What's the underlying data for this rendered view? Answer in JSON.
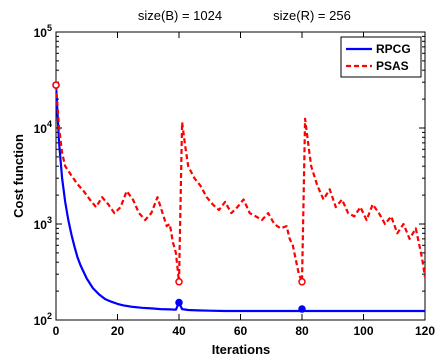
{
  "chart_data": {
    "type": "line",
    "title_parts": [
      "size(B) = 1024",
      "size(R) = 256"
    ],
    "xlabel": "Iterations",
    "ylabel": "Cost function",
    "xlim": [
      0,
      120
    ],
    "ylim": [
      100,
      100000
    ],
    "yscale": "log",
    "grid": false,
    "legend_position": "top-right",
    "xticks": [
      0,
      20,
      40,
      60,
      80,
      100,
      120
    ],
    "yticks": [
      {
        "value": 100,
        "base": "10",
        "exp": "2"
      },
      {
        "value": 1000,
        "base": "10",
        "exp": "3"
      },
      {
        "value": 10000,
        "base": "10",
        "exp": "4"
      },
      {
        "value": 100000,
        "base": "10",
        "exp": "5"
      }
    ],
    "series": [
      {
        "name": "RPCG",
        "color": "#0000ff",
        "style": "solid",
        "x": [
          0,
          1,
          2,
          3,
          4,
          5,
          6,
          7,
          8,
          10,
          12,
          14,
          16,
          18,
          20,
          22,
          25,
          28,
          31,
          34,
          37,
          39,
          40,
          41,
          43,
          46,
          50,
          55,
          60,
          70,
          79,
          80,
          81,
          85,
          90,
          100,
          110,
          120
        ],
        "y": [
          28000,
          7000,
          3000,
          1700,
          1100,
          780,
          580,
          450,
          370,
          270,
          215,
          185,
          165,
          155,
          147,
          142,
          137,
          134,
          132,
          130,
          129,
          128,
          152,
          130,
          127,
          126,
          125,
          124,
          124,
          124,
          124,
          130,
          124,
          124,
          124,
          124,
          124,
          124
        ]
      },
      {
        "name": "PSAS",
        "color": "#ff0000",
        "style": "dashed",
        "x": [
          0,
          1,
          2,
          3,
          5,
          7,
          9,
          11,
          13,
          15,
          17,
          19,
          21,
          23,
          25,
          27,
          29,
          31,
          33,
          35,
          36,
          37,
          38,
          39,
          40,
          41,
          42,
          43,
          45,
          47,
          49,
          51,
          53,
          55,
          57,
          59,
          61,
          63,
          65,
          67,
          69,
          71,
          73,
          75,
          76,
          77,
          78,
          79,
          80,
          81,
          82,
          83,
          85,
          87,
          89,
          91,
          93,
          95,
          97,
          99,
          101,
          103,
          105,
          107,
          109,
          111,
          113,
          115,
          117,
          119,
          120
        ],
        "y": [
          28000,
          10000,
          5500,
          4000,
          3200,
          2600,
          2200,
          1800,
          1500,
          1900,
          1600,
          1300,
          1500,
          2200,
          1800,
          1300,
          1100,
          1300,
          1900,
          1200,
          950,
          1000,
          650,
          500,
          250,
          11500,
          6500,
          4000,
          3000,
          2500,
          1900,
          1600,
          1400,
          1700,
          1300,
          1500,
          1800,
          1300,
          1200,
          1100,
          1300,
          1000,
          900,
          950,
          700,
          600,
          420,
          300,
          250,
          12500,
          7000,
          4000,
          2500,
          1800,
          2300,
          1500,
          1800,
          1300,
          1200,
          1500,
          1100,
          1600,
          1300,
          1000,
          1200,
          800,
          1000,
          700,
          900,
          450,
          280
        ]
      }
    ],
    "markers": [
      {
        "series": "RPCG",
        "x": 0,
        "y": 28000,
        "fill": true
      },
      {
        "series": "RPCG",
        "x": 40,
        "y": 152,
        "fill": true
      },
      {
        "series": "RPCG",
        "x": 80,
        "y": 130,
        "fill": true
      },
      {
        "series": "PSAS",
        "x": 0,
        "y": 28000,
        "fill": false
      },
      {
        "series": "PSAS",
        "x": 40,
        "y": 250,
        "fill": false
      },
      {
        "series": "PSAS",
        "x": 80,
        "y": 250,
        "fill": false
      }
    ]
  }
}
